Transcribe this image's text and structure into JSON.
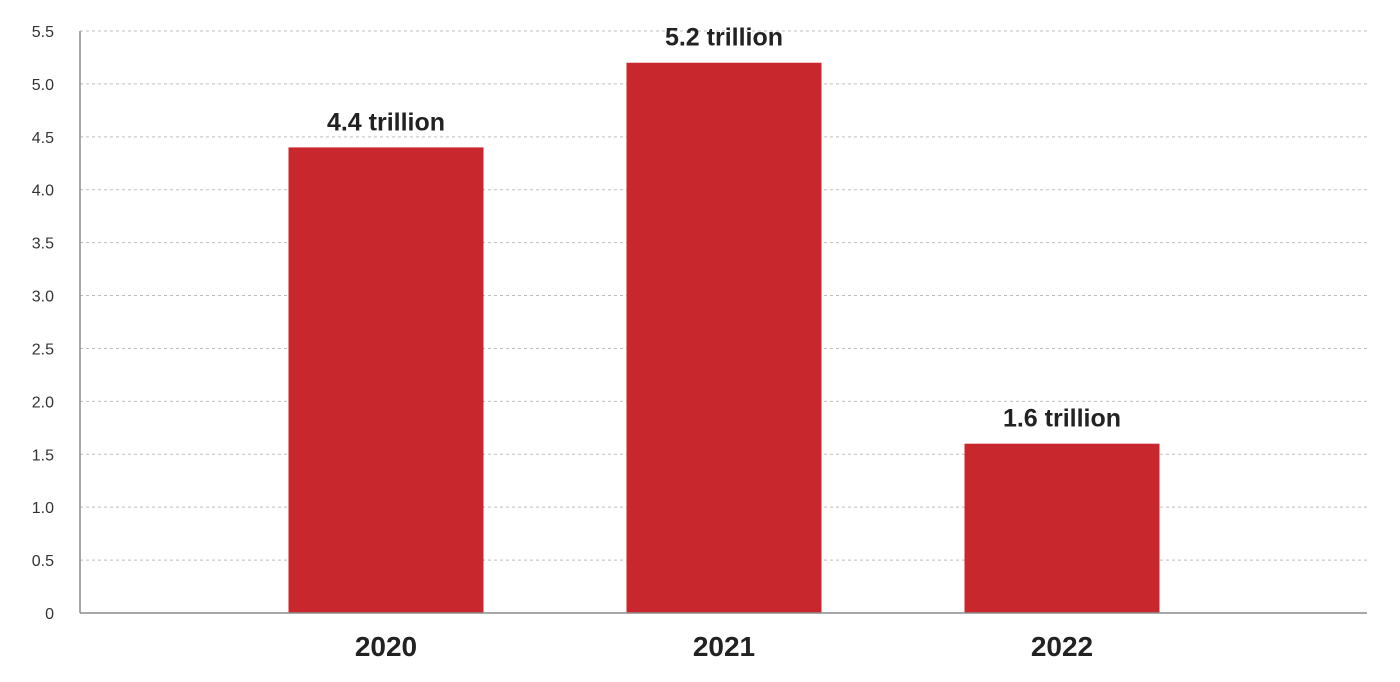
{
  "chart_data": {
    "type": "bar",
    "title": "",
    "xlabel": "",
    "ylabel": "",
    "categories": [
      "2020",
      "2021",
      "2022"
    ],
    "values": [
      4.4,
      5.2,
      1.6
    ],
    "data_labels": [
      "4.4 trillion",
      "5.2 trillion",
      "1.6 trillion"
    ],
    "ylim": [
      0,
      5.5
    ],
    "yticks": [
      0,
      0.5,
      1.0,
      1.5,
      2.0,
      2.5,
      3.0,
      3.5,
      4.0,
      4.5,
      5.0,
      5.5
    ],
    "ytick_labels": [
      "0",
      "0.5",
      "1.0",
      "1.5",
      "2.0",
      "2.5",
      "3.0",
      "3.5",
      "4.0",
      "4.5",
      "5.0",
      "5.5"
    ],
    "grid": true,
    "legend": "none",
    "bar_color": "#c8282d"
  }
}
